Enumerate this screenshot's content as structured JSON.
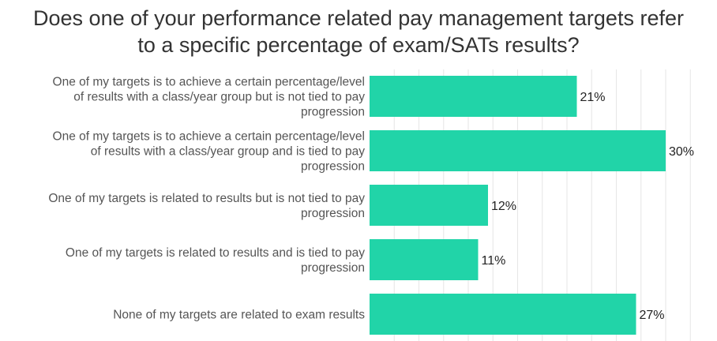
{
  "chart_data": {
    "type": "bar",
    "orientation": "horizontal",
    "title_lines": [
      "Does one of your performance related pay management targets refer",
      "to a specific percentage of exam/SATs results?"
    ],
    "categories": [
      [
        "One of my targets is to achieve a certain percentage/level",
        "of results with a class/year group but is not tied to pay",
        "progression"
      ],
      [
        "One of my targets is to achieve a certain percentage/level",
        "of results with a class/year group and is tied to pay",
        "progression"
      ],
      [
        "One of my targets is related to results but is not tied to pay",
        "progression"
      ],
      [
        "One of my targets is related to results and is tied to pay",
        "progression"
      ],
      [
        "None of my targets are related to exam results"
      ]
    ],
    "values": [
      21,
      30,
      12,
      11,
      27
    ],
    "value_labels": [
      "21%",
      "30%",
      "12%",
      "11%",
      "27%"
    ],
    "xlim": [
      0,
      34
    ],
    "grid": true,
    "bar_color": "#21d4a8",
    "grid_color": "#e6e6e6"
  }
}
